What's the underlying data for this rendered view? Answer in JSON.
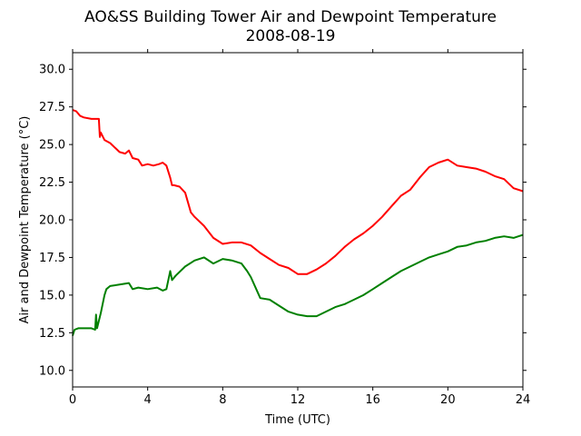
{
  "chart_data": {
    "type": "line",
    "title_line1": "AO&SS Building Tower Air and Dewpoint Temperature",
    "title_line2": "2008-08-19",
    "xlabel": "Time (UTC)",
    "ylabel": "Air and Dewpoint Temperature (°C)",
    "xlim": [
      0,
      24
    ],
    "ylim": [
      8.9,
      31.1
    ],
    "x_ticks": [
      0,
      4,
      8,
      12,
      16,
      20,
      24
    ],
    "x_tick_labels": [
      "0",
      "4",
      "8",
      "12",
      "16",
      "20",
      "24"
    ],
    "y_ticks": [
      10.0,
      12.5,
      15.0,
      17.5,
      20.0,
      22.5,
      25.0,
      27.5,
      30.0
    ],
    "y_tick_labels": [
      "10.0",
      "12.5",
      "15.0",
      "17.5",
      "20.0",
      "22.5",
      "25.0",
      "27.5",
      "30.0"
    ],
    "grid": false,
    "series": [
      {
        "color": "#ff0000",
        "x": [
          0,
          0.2,
          0.4,
          0.6,
          1.0,
          1.4,
          1.45,
          1.5,
          1.7,
          2.0,
          2.5,
          2.8,
          3.0,
          3.2,
          3.5,
          3.7,
          4.0,
          4.3,
          4.6,
          4.8,
          5.0,
          5.2,
          5.3,
          5.4,
          5.7,
          6.0,
          6.3,
          6.5,
          7.0,
          7.5,
          8.0,
          8.5,
          9.0,
          9.5,
          10.0,
          10.5,
          11.0,
          11.5,
          12.0,
          12.5,
          13.0,
          13.5,
          14.0,
          14.5,
          15.0,
          15.5,
          16.0,
          16.5,
          17.0,
          17.5,
          18.0,
          18.5,
          19.0,
          19.5,
          20.0,
          20.5,
          21.0,
          21.5,
          22.0,
          22.5,
          23.0,
          23.5,
          24.0
        ],
        "y": [
          27.3,
          27.2,
          26.9,
          26.8,
          26.7,
          26.7,
          25.5,
          25.8,
          25.3,
          25.1,
          24.5,
          24.4,
          24.6,
          24.1,
          24.0,
          23.6,
          23.7,
          23.6,
          23.7,
          23.8,
          23.6,
          22.8,
          22.3,
          22.3,
          22.2,
          21.8,
          20.5,
          20.2,
          19.6,
          18.8,
          18.4,
          18.5,
          18.5,
          18.3,
          17.8,
          17.4,
          17.0,
          16.8,
          16.4,
          16.4,
          16.7,
          17.1,
          17.6,
          18.2,
          18.7,
          19.1,
          19.6,
          20.2,
          20.9,
          21.6,
          22.0,
          22.8,
          23.5,
          23.8,
          24.0,
          23.6,
          23.5,
          23.4,
          23.2,
          22.9,
          22.7,
          22.1,
          21.9
        ]
      },
      {
        "color": "#008000",
        "x": [
          0,
          0.1,
          0.3,
          0.6,
          1.0,
          1.2,
          1.25,
          1.3,
          1.5,
          1.7,
          1.8,
          2.0,
          2.5,
          3.0,
          3.2,
          3.5,
          4.0,
          4.5,
          4.8,
          5.0,
          5.2,
          5.3,
          5.5,
          6.0,
          6.5,
          7.0,
          7.5,
          8.0,
          8.5,
          9.0,
          9.3,
          9.5,
          10.0,
          10.5,
          11.0,
          11.5,
          12.0,
          12.5,
          13.0,
          13.5,
          14.0,
          14.5,
          15.0,
          15.5,
          16.0,
          16.5,
          17.0,
          17.5,
          18.0,
          18.5,
          19.0,
          19.5,
          20.0,
          20.5,
          21.0,
          21.5,
          22.0,
          22.5,
          23.0,
          23.5,
          24.0
        ],
        "y": [
          12.3,
          12.7,
          12.8,
          12.8,
          12.8,
          12.7,
          13.7,
          12.8,
          13.8,
          15.0,
          15.4,
          15.6,
          15.7,
          15.8,
          15.4,
          15.5,
          15.4,
          15.5,
          15.3,
          15.4,
          16.6,
          16.0,
          16.3,
          16.9,
          17.3,
          17.5,
          17.1,
          17.4,
          17.3,
          17.1,
          16.6,
          16.2,
          14.8,
          14.7,
          14.3,
          13.9,
          13.7,
          13.6,
          13.6,
          13.9,
          14.2,
          14.4,
          14.7,
          15.0,
          15.4,
          15.8,
          16.2,
          16.6,
          16.9,
          17.2,
          17.5,
          17.7,
          17.9,
          18.2,
          18.3,
          18.5,
          18.6,
          18.8,
          18.9,
          18.8,
          19.0
        ]
      }
    ]
  }
}
